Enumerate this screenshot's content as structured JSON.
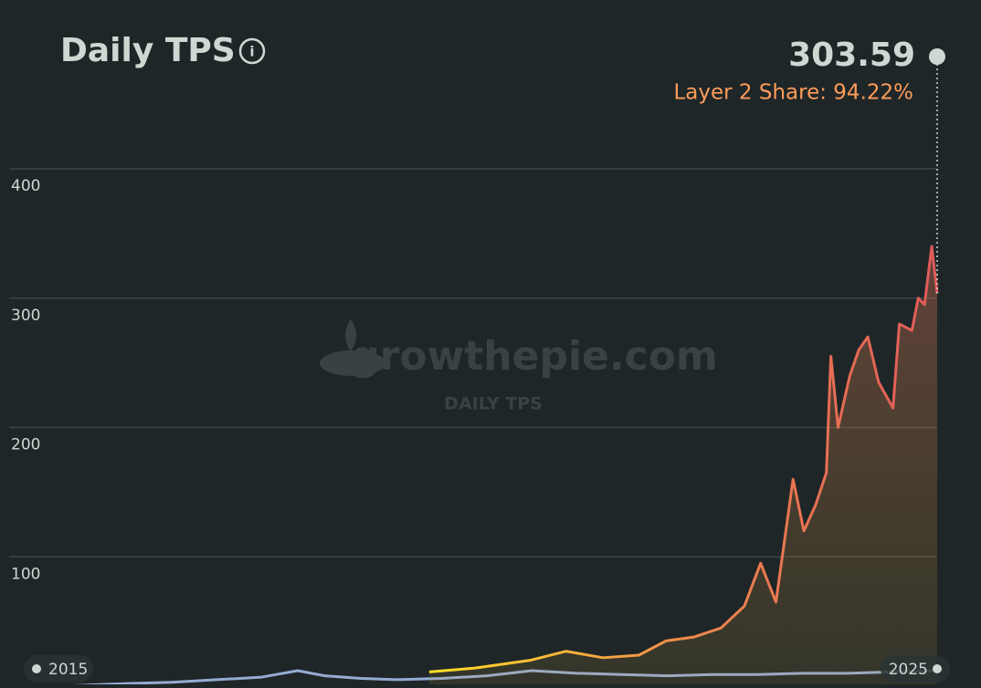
{
  "chart_data": {
    "type": "line",
    "title": "Daily TPS",
    "current_value": 303.59,
    "share_label": "Layer 2 Share: 94.22%",
    "watermark": "growthepie.com",
    "watermark_subtitle": "DAILY TPS",
    "xlim": [
      2015,
      2025
    ],
    "xticks": [
      2015,
      2025
    ],
    "ylim": [
      0,
      400
    ],
    "yticks": [
      100,
      200,
      300,
      400
    ],
    "grid": true,
    "series": [
      {
        "color": "#94abd3",
        "x": [
          2015.3,
          2015.6,
          2016,
          2016.5,
          2017,
          2017.5,
          2017.9,
          2018.2,
          2018.6,
          2019,
          2019.5,
          2020,
          2020.5,
          2021,
          2021.5,
          2022,
          2022.5,
          2023,
          2023.5,
          2024,
          2024.5,
          2025
        ],
        "values": [
          0,
          1,
          2,
          3,
          5,
          7,
          12,
          8,
          6,
          5,
          6,
          8,
          12,
          10,
          9,
          8,
          9,
          9,
          10,
          10,
          11,
          12
        ]
      },
      {
        "color": "#e0735a",
        "gradient": [
          "#ffdf27",
          "#f08a4b",
          "#e05a5a"
        ],
        "x": [
          2019.36,
          2019.87,
          2020.48,
          2020.88,
          2021.29,
          2021.69,
          2021.99,
          2022.3,
          2022.6,
          2022.86,
          2023.04,
          2023.21,
          2023.34,
          2023.4,
          2023.52,
          2023.65,
          2023.77,
          2023.82,
          2023.9,
          2024.03,
          2024.13,
          2024.23,
          2024.35,
          2024.51,
          2024.58,
          2024.72,
          2024.79,
          2024.86,
          2024.94,
          2025
        ],
        "values": [
          11,
          14,
          20,
          27,
          22,
          24,
          35,
          38,
          45,
          62,
          95,
          65,
          130,
          160,
          120,
          140,
          165,
          255,
          200,
          240,
          260,
          270,
          235,
          215,
          280,
          275,
          300,
          295,
          340,
          303.59
        ]
      }
    ]
  }
}
